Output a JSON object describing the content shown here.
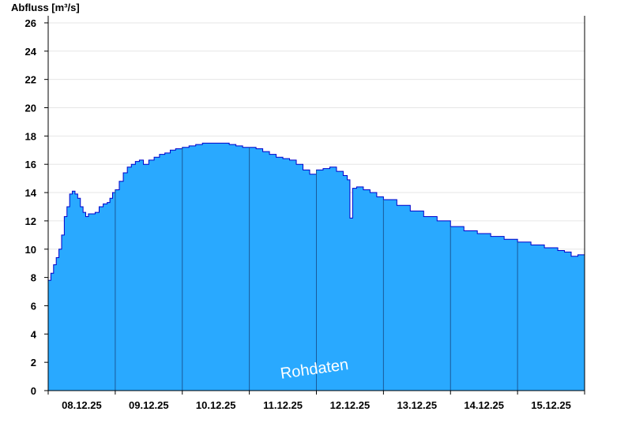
{
  "chart_data": {
    "type": "area",
    "ylabel": "Abfluss [m³/s]",
    "ylim": [
      0,
      26.5
    ],
    "yticks": [
      "0",
      "2",
      "4",
      "6",
      "8",
      "10",
      "12",
      "14",
      "16",
      "18",
      "20",
      "22",
      "24",
      "26"
    ],
    "xticks": [
      "08.12.25",
      "09.12.25",
      "10.12.25",
      "11.12.25",
      "12.12.25",
      "13.12.25",
      "14.12.25",
      "15.12.25"
    ],
    "x_range_days": [
      0,
      8
    ],
    "grid": true,
    "watermark": "Rohdaten",
    "colors": {
      "fill": "#29A9FF",
      "line": "#0000CC",
      "grid": "#E6E6E6"
    },
    "series": [
      {
        "x": [
          0,
          0.04,
          0.08,
          0.12,
          0.16,
          0.2,
          0.24,
          0.28,
          0.32,
          0.36,
          0.4,
          0.44,
          0.48,
          0.52,
          0.56,
          0.6,
          0.64,
          0.7,
          0.76,
          0.82,
          0.88,
          0.92,
          0.96,
          1.0,
          1.06,
          1.12,
          1.18,
          1.24,
          1.3,
          1.36,
          1.42,
          1.5,
          1.58,
          1.66,
          1.74,
          1.82,
          1.9,
          2.0,
          2.1,
          2.2,
          2.3,
          2.4,
          2.5,
          2.6,
          2.7,
          2.8,
          2.9,
          3.0,
          3.1,
          3.2,
          3.3,
          3.4,
          3.5,
          3.6,
          3.7,
          3.8,
          3.9,
          4.0,
          4.1,
          4.2,
          4.3,
          4.4,
          4.46,
          4.5,
          4.54,
          4.6,
          4.7,
          4.8,
          4.9,
          5.0,
          5.2,
          5.4,
          5.6,
          5.8,
          6.0,
          6.2,
          6.4,
          6.6,
          6.8,
          7.0,
          7.2,
          7.4,
          7.6,
          7.7,
          7.8,
          7.9,
          8.0
        ],
        "y": [
          7.8,
          8.3,
          8.9,
          9.4,
          10.0,
          11.0,
          12.3,
          13.0,
          13.9,
          14.1,
          13.9,
          13.6,
          13.0,
          12.6,
          12.3,
          12.5,
          12.5,
          12.6,
          13.0,
          13.2,
          13.3,
          13.6,
          14.0,
          14.2,
          14.8,
          15.4,
          15.8,
          16.0,
          16.2,
          16.3,
          16.0,
          16.3,
          16.5,
          16.7,
          16.8,
          17.0,
          17.1,
          17.2,
          17.3,
          17.4,
          17.5,
          17.5,
          17.5,
          17.5,
          17.4,
          17.3,
          17.2,
          17.2,
          17.1,
          16.9,
          16.7,
          16.5,
          16.4,
          16.3,
          16.0,
          15.6,
          15.3,
          15.6,
          15.7,
          15.8,
          15.5,
          15.2,
          14.9,
          12.2,
          14.3,
          14.4,
          14.2,
          14.0,
          13.7,
          13.5,
          13.1,
          12.7,
          12.3,
          12.0,
          11.6,
          11.3,
          11.1,
          10.9,
          10.7,
          10.5,
          10.3,
          10.1,
          9.9,
          9.8,
          9.5,
          9.6,
          9.3
        ]
      }
    ]
  }
}
